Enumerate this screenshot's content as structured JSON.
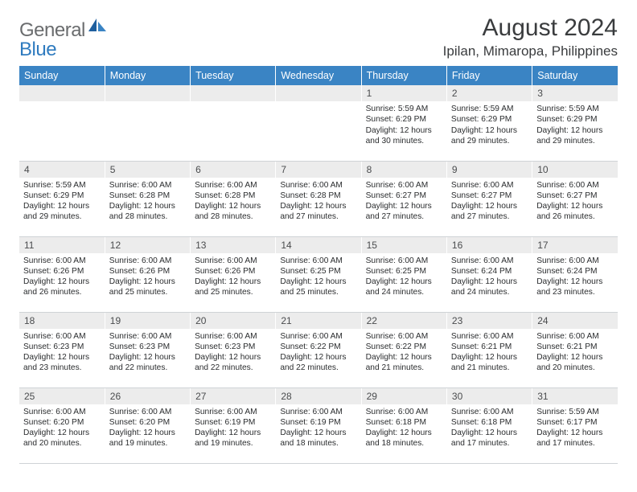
{
  "brand": {
    "general": "General",
    "blue": "Blue"
  },
  "header": {
    "month_title": "August 2024",
    "location": "Ipilan, Mimaropa, Philippines"
  },
  "colors": {
    "header_bg": "#3a84c4",
    "header_text": "#ffffff",
    "daynum_bg": "#ececec",
    "grid_line": "#cfd3d6",
    "logo_gray": "#6a6c6e",
    "logo_blue": "#2f7bbf",
    "text": "#2a2c2e"
  },
  "weekdays": [
    "Sunday",
    "Monday",
    "Tuesday",
    "Wednesday",
    "Thursday",
    "Friday",
    "Saturday"
  ],
  "weeks": [
    [
      null,
      null,
      null,
      null,
      {
        "n": "1",
        "sr": "5:59 AM",
        "ss": "6:29 PM",
        "dl": "12 hours and 30 minutes."
      },
      {
        "n": "2",
        "sr": "5:59 AM",
        "ss": "6:29 PM",
        "dl": "12 hours and 29 minutes."
      },
      {
        "n": "3",
        "sr": "5:59 AM",
        "ss": "6:29 PM",
        "dl": "12 hours and 29 minutes."
      }
    ],
    [
      {
        "n": "4",
        "sr": "5:59 AM",
        "ss": "6:29 PM",
        "dl": "12 hours and 29 minutes."
      },
      {
        "n": "5",
        "sr": "6:00 AM",
        "ss": "6:28 PM",
        "dl": "12 hours and 28 minutes."
      },
      {
        "n": "6",
        "sr": "6:00 AM",
        "ss": "6:28 PM",
        "dl": "12 hours and 28 minutes."
      },
      {
        "n": "7",
        "sr": "6:00 AM",
        "ss": "6:28 PM",
        "dl": "12 hours and 27 minutes."
      },
      {
        "n": "8",
        "sr": "6:00 AM",
        "ss": "6:27 PM",
        "dl": "12 hours and 27 minutes."
      },
      {
        "n": "9",
        "sr": "6:00 AM",
        "ss": "6:27 PM",
        "dl": "12 hours and 27 minutes."
      },
      {
        "n": "10",
        "sr": "6:00 AM",
        "ss": "6:27 PM",
        "dl": "12 hours and 26 minutes."
      }
    ],
    [
      {
        "n": "11",
        "sr": "6:00 AM",
        "ss": "6:26 PM",
        "dl": "12 hours and 26 minutes."
      },
      {
        "n": "12",
        "sr": "6:00 AM",
        "ss": "6:26 PM",
        "dl": "12 hours and 25 minutes."
      },
      {
        "n": "13",
        "sr": "6:00 AM",
        "ss": "6:26 PM",
        "dl": "12 hours and 25 minutes."
      },
      {
        "n": "14",
        "sr": "6:00 AM",
        "ss": "6:25 PM",
        "dl": "12 hours and 25 minutes."
      },
      {
        "n": "15",
        "sr": "6:00 AM",
        "ss": "6:25 PM",
        "dl": "12 hours and 24 minutes."
      },
      {
        "n": "16",
        "sr": "6:00 AM",
        "ss": "6:24 PM",
        "dl": "12 hours and 24 minutes."
      },
      {
        "n": "17",
        "sr": "6:00 AM",
        "ss": "6:24 PM",
        "dl": "12 hours and 23 minutes."
      }
    ],
    [
      {
        "n": "18",
        "sr": "6:00 AM",
        "ss": "6:23 PM",
        "dl": "12 hours and 23 minutes."
      },
      {
        "n": "19",
        "sr": "6:00 AM",
        "ss": "6:23 PM",
        "dl": "12 hours and 22 minutes."
      },
      {
        "n": "20",
        "sr": "6:00 AM",
        "ss": "6:23 PM",
        "dl": "12 hours and 22 minutes."
      },
      {
        "n": "21",
        "sr": "6:00 AM",
        "ss": "6:22 PM",
        "dl": "12 hours and 22 minutes."
      },
      {
        "n": "22",
        "sr": "6:00 AM",
        "ss": "6:22 PM",
        "dl": "12 hours and 21 minutes."
      },
      {
        "n": "23",
        "sr": "6:00 AM",
        "ss": "6:21 PM",
        "dl": "12 hours and 21 minutes."
      },
      {
        "n": "24",
        "sr": "6:00 AM",
        "ss": "6:21 PM",
        "dl": "12 hours and 20 minutes."
      }
    ],
    [
      {
        "n": "25",
        "sr": "6:00 AM",
        "ss": "6:20 PM",
        "dl": "12 hours and 20 minutes."
      },
      {
        "n": "26",
        "sr": "6:00 AM",
        "ss": "6:20 PM",
        "dl": "12 hours and 19 minutes."
      },
      {
        "n": "27",
        "sr": "6:00 AM",
        "ss": "6:19 PM",
        "dl": "12 hours and 19 minutes."
      },
      {
        "n": "28",
        "sr": "6:00 AM",
        "ss": "6:19 PM",
        "dl": "12 hours and 18 minutes."
      },
      {
        "n": "29",
        "sr": "6:00 AM",
        "ss": "6:18 PM",
        "dl": "12 hours and 18 minutes."
      },
      {
        "n": "30",
        "sr": "6:00 AM",
        "ss": "6:18 PM",
        "dl": "12 hours and 17 minutes."
      },
      {
        "n": "31",
        "sr": "5:59 AM",
        "ss": "6:17 PM",
        "dl": "12 hours and 17 minutes."
      }
    ]
  ],
  "labels": {
    "sunrise": "Sunrise:",
    "sunset": "Sunset:",
    "daylight": "Daylight:"
  }
}
